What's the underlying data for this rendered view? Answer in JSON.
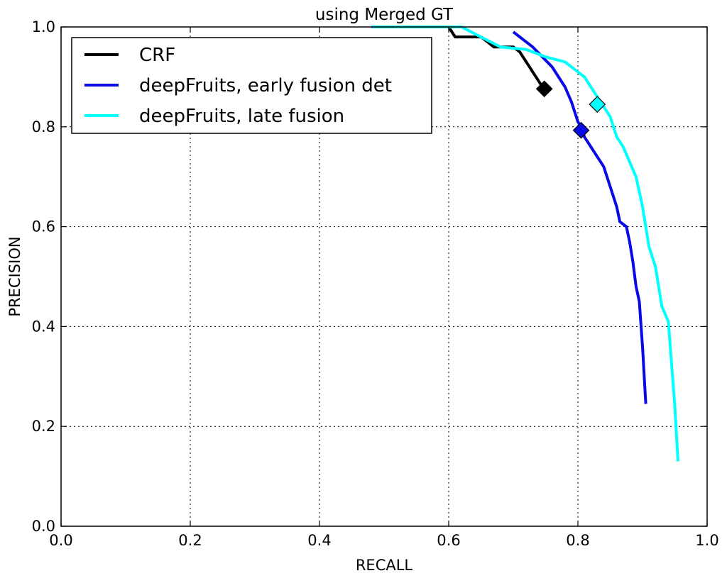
{
  "chart_data": {
    "type": "line",
    "title": "using Merged GT",
    "xlabel": "RECALL",
    "ylabel": "PRECISION",
    "xlim": [
      0.0,
      1.0
    ],
    "ylim": [
      0.0,
      1.0
    ],
    "xticks": [
      "0.0",
      "0.2",
      "0.4",
      "0.6",
      "0.8",
      "1.0"
    ],
    "yticks": [
      "0.0",
      "0.2",
      "0.4",
      "0.6",
      "0.8",
      "1.0"
    ],
    "grid": true,
    "legend_position": "top-left",
    "series": [
      {
        "name": "CRF",
        "color": "#000000",
        "x": [
          0.6,
          0.605,
          0.61,
          0.63,
          0.65,
          0.66,
          0.67,
          0.69,
          0.7,
          0.71,
          0.715,
          0.72,
          0.725,
          0.73,
          0.735,
          0.74,
          0.745,
          0.75
        ],
        "y": [
          1.0,
          0.99,
          0.98,
          0.98,
          0.98,
          0.97,
          0.96,
          0.96,
          0.96,
          0.95,
          0.94,
          0.93,
          0.92,
          0.91,
          0.9,
          0.89,
          0.88,
          0.875
        ],
        "marker": {
          "x": 0.748,
          "y": 0.876
        }
      },
      {
        "name": "deepFruits, early fusion det",
        "color": "#0a0ae6",
        "x": [
          0.7,
          0.73,
          0.76,
          0.78,
          0.79,
          0.8,
          0.805,
          0.81,
          0.82,
          0.83,
          0.84,
          0.85,
          0.86,
          0.865,
          0.87,
          0.875,
          0.88,
          0.885,
          0.89,
          0.895,
          0.9,
          0.905
        ],
        "y": [
          0.99,
          0.96,
          0.92,
          0.88,
          0.85,
          0.81,
          0.8,
          0.78,
          0.76,
          0.74,
          0.72,
          0.68,
          0.64,
          0.61,
          0.605,
          0.6,
          0.57,
          0.53,
          0.48,
          0.45,
          0.36,
          0.245
        ],
        "marker": {
          "x": 0.805,
          "y": 0.793
        }
      },
      {
        "name": "deepFruits, late fusion",
        "color": "#00ffff",
        "x": [
          0.48,
          0.55,
          0.62,
          0.65,
          0.68,
          0.72,
          0.75,
          0.78,
          0.8,
          0.81,
          0.82,
          0.83,
          0.84,
          0.85,
          0.86,
          0.87,
          0.88,
          0.89,
          0.9,
          0.91,
          0.92,
          0.93,
          0.94,
          0.95,
          0.955
        ],
        "y": [
          1.0,
          1.0,
          1.0,
          0.98,
          0.96,
          0.955,
          0.94,
          0.93,
          0.91,
          0.9,
          0.88,
          0.86,
          0.84,
          0.82,
          0.78,
          0.76,
          0.73,
          0.7,
          0.64,
          0.56,
          0.52,
          0.44,
          0.41,
          0.24,
          0.13
        ],
        "marker": {
          "x": 0.83,
          "y": 0.845
        }
      }
    ]
  }
}
